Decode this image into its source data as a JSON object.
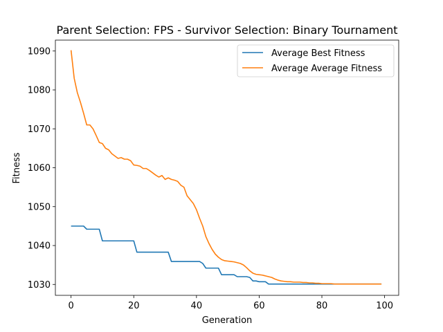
{
  "chart_data": {
    "type": "line",
    "title": "Parent Selection: FPS - Survivor Selection: Binary Tournament",
    "xlabel": "Generation",
    "ylabel": "Fitness",
    "xlim": [
      -5,
      104.5
    ],
    "ylim": [
      1027.2,
      1092.8
    ],
    "xticks": [
      0,
      20,
      40,
      60,
      80,
      100
    ],
    "yticks": [
      1030,
      1040,
      1050,
      1060,
      1070,
      1080,
      1090
    ],
    "grid": false,
    "legend_position": "top-right",
    "x": [
      0,
      1,
      2,
      3,
      4,
      5,
      6,
      7,
      8,
      9,
      10,
      11,
      12,
      13,
      14,
      15,
      16,
      17,
      18,
      19,
      20,
      21,
      22,
      23,
      24,
      25,
      26,
      27,
      28,
      29,
      30,
      31,
      32,
      33,
      34,
      35,
      36,
      37,
      38,
      39,
      40,
      41,
      42,
      43,
      44,
      45,
      46,
      47,
      48,
      49,
      50,
      51,
      52,
      53,
      54,
      55,
      56,
      57,
      58,
      59,
      60,
      61,
      62,
      63,
      64,
      65,
      66,
      67,
      68,
      69,
      70,
      71,
      72,
      73,
      74,
      75,
      76,
      77,
      78,
      79,
      80,
      81,
      82,
      83,
      84,
      85,
      86,
      87,
      88,
      89,
      90,
      91,
      92,
      93,
      94,
      95,
      96,
      97,
      98,
      99
    ],
    "series": [
      {
        "name": "Average Best Fitness",
        "color": "#1f77b4",
        "values": [
          1045.0,
          1045.0,
          1045.0,
          1045.0,
          1045.0,
          1044.2,
          1044.2,
          1044.2,
          1044.2,
          1044.2,
          1041.2,
          1041.2,
          1041.2,
          1041.2,
          1041.2,
          1041.2,
          1041.2,
          1041.2,
          1041.2,
          1041.2,
          1041.2,
          1038.3,
          1038.3,
          1038.3,
          1038.3,
          1038.3,
          1038.3,
          1038.3,
          1038.3,
          1038.3,
          1038.3,
          1038.3,
          1035.9,
          1035.9,
          1035.9,
          1035.9,
          1035.9,
          1035.9,
          1035.9,
          1035.9,
          1035.9,
          1035.9,
          1035.4,
          1034.2,
          1034.2,
          1034.2,
          1034.2,
          1034.2,
          1032.5,
          1032.5,
          1032.5,
          1032.5,
          1032.5,
          1032.0,
          1032.0,
          1032.0,
          1032.0,
          1031.8,
          1030.9,
          1030.9,
          1030.7,
          1030.7,
          1030.7,
          1030.1,
          1030.1,
          1030.1,
          1030.1,
          1030.1,
          1030.1,
          1030.1,
          1030.1,
          1030.1,
          1030.1,
          1030.1,
          1030.1,
          1030.1,
          1030.1,
          1030.1,
          1030.1,
          1030.1,
          1030.1,
          1030.1,
          1030.1,
          1030.1,
          1030.1,
          1030.1,
          1030.1,
          1030.1,
          1030.1,
          1030.1,
          1030.1,
          1030.1,
          1030.1,
          1030.1,
          1030.1,
          1030.1,
          1030.1,
          1030.1,
          1030.1,
          1030.1
        ]
      },
      {
        "name": "Average Average Fitness",
        "color": "#ff7f0e",
        "values": [
          1090.2,
          1083.0,
          1079.3,
          1076.8,
          1074.0,
          1071.0,
          1071.0,
          1070.0,
          1068.3,
          1066.5,
          1066.2,
          1065.0,
          1064.6,
          1063.6,
          1063.0,
          1062.4,
          1062.6,
          1062.2,
          1062.2,
          1061.8,
          1060.7,
          1060.6,
          1060.4,
          1059.8,
          1059.8,
          1059.3,
          1058.7,
          1058.1,
          1057.6,
          1058.0,
          1057.0,
          1057.4,
          1057.0,
          1056.8,
          1056.5,
          1055.5,
          1055.0,
          1052.8,
          1051.8,
          1050.8,
          1049.2,
          1047.0,
          1045.0,
          1042.3,
          1040.5,
          1039.0,
          1037.8,
          1037.0,
          1036.4,
          1036.1,
          1036.0,
          1035.9,
          1035.8,
          1035.6,
          1035.4,
          1035.0,
          1034.3,
          1033.5,
          1032.9,
          1032.6,
          1032.5,
          1032.4,
          1032.2,
          1032.0,
          1031.8,
          1031.4,
          1031.1,
          1030.9,
          1030.8,
          1030.7,
          1030.7,
          1030.6,
          1030.6,
          1030.6,
          1030.5,
          1030.5,
          1030.4,
          1030.4,
          1030.3,
          1030.3,
          1030.2,
          1030.2,
          1030.2,
          1030.2,
          1030.1,
          1030.1,
          1030.1,
          1030.1,
          1030.1,
          1030.1,
          1030.1,
          1030.1,
          1030.1,
          1030.1,
          1030.1,
          1030.1,
          1030.1,
          1030.1,
          1030.1,
          1030.1
        ]
      }
    ]
  }
}
